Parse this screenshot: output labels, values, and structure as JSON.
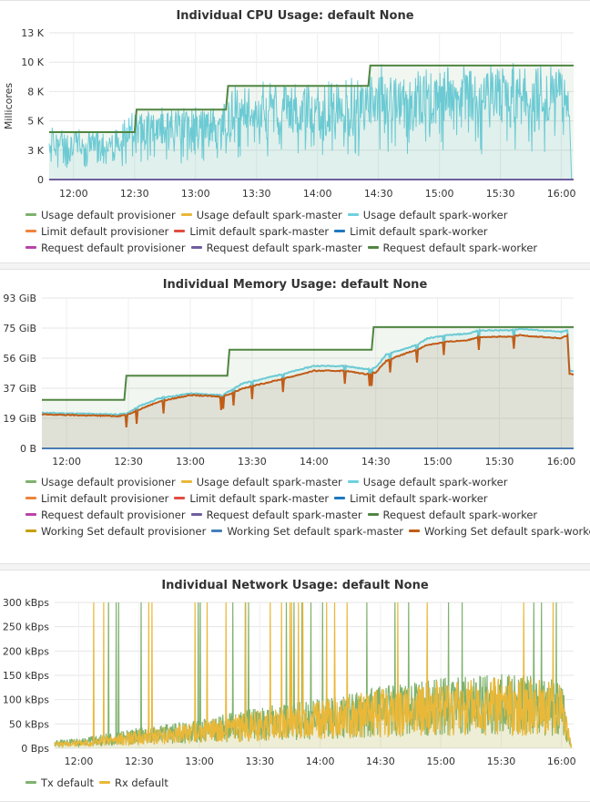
{
  "chart_data": [
    {
      "type": "line",
      "title": "Individual CPU Usage: default None",
      "ylabel": "Millicores",
      "ylim": [
        0,
        13000
      ],
      "yticks": [
        "0",
        "3 K",
        "5 K",
        "8 K",
        "10 K",
        "13 K"
      ],
      "ytick_values": [
        0,
        2600,
        5200,
        7800,
        10400,
        13000
      ],
      "xrange": [
        "11:48",
        "16:06"
      ],
      "xticks": [
        "12:00",
        "12:30",
        "13:00",
        "13:30",
        "14:00",
        "14:30",
        "15:00",
        "15:30",
        "16:00"
      ],
      "series": [
        {
          "name": "Usage default provisioner",
          "color": "#7eb26d",
          "points": []
        },
        {
          "name": "Usage default spark-master",
          "color": "#eab839",
          "points": []
        },
        {
          "name": "Usage default spark-worker",
          "color": "#6ed0e0",
          "points": [
            [
              "11:48",
              4000
            ],
            [
              "12:05",
              4100
            ],
            [
              "12:20",
              4200
            ],
            [
              "12:32",
              5600
            ],
            [
              "12:50",
              5700
            ],
            [
              "13:10",
              5600
            ],
            [
              "13:22",
              7800
            ],
            [
              "13:40",
              7600
            ],
            [
              "14:00",
              7500
            ],
            [
              "14:15",
              7700
            ],
            [
              "14:28",
              9000
            ],
            [
              "14:45",
              8600
            ],
            [
              "15:00",
              9000
            ],
            [
              "15:20",
              8800
            ],
            [
              "15:40",
              9200
            ],
            [
              "16:04",
              8800
            ],
            [
              "16:05",
              0
            ]
          ]
        },
        {
          "name": "Limit default provisioner",
          "color": "#ef843c",
          "points": []
        },
        {
          "name": "Limit default spark-master",
          "color": "#e24d42",
          "points": []
        },
        {
          "name": "Limit default spark-worker",
          "color": "#1f78c1",
          "points": []
        },
        {
          "name": "Request default provisioner",
          "color": "#ba43a9",
          "points": []
        },
        {
          "name": "Request default spark-master",
          "color": "#705da0",
          "points": [
            [
              "11:48",
              0
            ],
            [
              "16:06",
              0
            ]
          ]
        },
        {
          "name": "Request default spark-worker",
          "color": "#508642",
          "points": [
            [
              "11:48",
              4200
            ],
            [
              "12:30",
              4200
            ],
            [
              "12:31",
              6200
            ],
            [
              "13:15",
              6200
            ],
            [
              "13:16",
              8300
            ],
            [
              "14:25",
              8300
            ],
            [
              "14:26",
              10100
            ],
            [
              "16:06",
              10100
            ]
          ]
        }
      ]
    },
    {
      "type": "area",
      "title": "Individual Memory Usage: default None",
      "ylim": [
        0,
        93
      ],
      "yticks": [
        "0 B",
        "19 GiB",
        "37 GiB",
        "56 GiB",
        "75 GiB",
        "93 GiB"
      ],
      "ytick_values": [
        0,
        18.6,
        37.2,
        55.8,
        74.4,
        93
      ],
      "xrange": [
        "11:48",
        "16:06"
      ],
      "xticks": [
        "12:00",
        "12:30",
        "13:00",
        "13:30",
        "14:00",
        "14:30",
        "15:00",
        "15:30",
        "16:00"
      ],
      "series": [
        {
          "name": "Usage default provisioner",
          "color": "#7eb26d",
          "points": []
        },
        {
          "name": "Usage default spark-master",
          "color": "#eab839",
          "points": []
        },
        {
          "name": "Usage default spark-worker",
          "color": "#6ed0e0",
          "points": [
            [
              "11:48",
              22
            ],
            [
              "12:25",
              21
            ],
            [
              "12:30",
              22
            ],
            [
              "12:35",
              26
            ],
            [
              "12:45",
              31
            ],
            [
              "13:00",
              34
            ],
            [
              "13:15",
              33
            ],
            [
              "13:20",
              36
            ],
            [
              "13:25",
              40
            ],
            [
              "13:45",
              46
            ],
            [
              "14:00",
              51
            ],
            [
              "14:15",
              51
            ],
            [
              "14:25",
              49
            ],
            [
              "14:30",
              50
            ],
            [
              "14:35",
              58
            ],
            [
              "14:45",
              62
            ],
            [
              "14:50",
              64
            ],
            [
              "14:55",
              68
            ],
            [
              "15:05",
              70
            ],
            [
              "15:15",
              71
            ],
            [
              "15:20",
              73
            ],
            [
              "15:35",
              73
            ],
            [
              "15:40",
              74
            ],
            [
              "16:00",
              72
            ],
            [
              "16:03",
              73
            ],
            [
              "16:04",
              48
            ],
            [
              "16:06",
              48
            ]
          ]
        },
        {
          "name": "Limit default provisioner",
          "color": "#ef843c",
          "points": []
        },
        {
          "name": "Limit default spark-master",
          "color": "#e24d42",
          "points": []
        },
        {
          "name": "Limit default spark-worker",
          "color": "#1f78c1",
          "points": []
        },
        {
          "name": "Request default provisioner",
          "color": "#ba43a9",
          "points": []
        },
        {
          "name": "Request default spark-master",
          "color": "#705da0",
          "points": [
            [
              "11:48",
              0
            ],
            [
              "16:06",
              0
            ]
          ]
        },
        {
          "name": "Request default spark-worker",
          "color": "#508642",
          "points": [
            [
              "11:48",
              30
            ],
            [
              "12:28",
              30
            ],
            [
              "12:29",
              45
            ],
            [
              "13:18",
              45
            ],
            [
              "13:19",
              61
            ],
            [
              "14:28",
              61
            ],
            [
              "14:29",
              75
            ],
            [
              "16:06",
              75
            ]
          ]
        },
        {
          "name": "Working Set default provisioner",
          "color": "#c4a000",
          "points": []
        },
        {
          "name": "Working Set default spark-master",
          "color": "#447ebc",
          "points": [
            [
              "11:48",
              0
            ],
            [
              "16:06",
              0
            ]
          ]
        },
        {
          "name": "Working Set default spark-worker",
          "color": "#c15c17",
          "points": [
            [
              "11:48",
              21
            ],
            [
              "12:25",
              20
            ],
            [
              "12:30",
              21
            ],
            [
              "12:35",
              24
            ],
            [
              "12:45",
              29
            ],
            [
              "13:00",
              33
            ],
            [
              "13:15",
              32
            ],
            [
              "13:20",
              34
            ],
            [
              "13:25",
              37
            ],
            [
              "13:45",
              43
            ],
            [
              "14:00",
              48
            ],
            [
              "14:15",
              48
            ],
            [
              "14:25",
              46
            ],
            [
              "14:30",
              47
            ],
            [
              "14:35",
              54
            ],
            [
              "14:45",
              59
            ],
            [
              "14:50",
              61
            ],
            [
              "14:55",
              64
            ],
            [
              "15:05",
              66
            ],
            [
              "15:15",
              67
            ],
            [
              "15:20",
              69
            ],
            [
              "15:35",
              69
            ],
            [
              "15:40",
              70
            ],
            [
              "16:00",
              68
            ],
            [
              "16:03",
              70
            ],
            [
              "16:04",
              46
            ],
            [
              "16:06",
              46
            ]
          ]
        }
      ]
    },
    {
      "type": "line",
      "title": "Individual Network Usage: default None",
      "ylim": [
        0,
        300
      ],
      "yticks": [
        "0 Bps",
        "50 kBps",
        "100 kBps",
        "150 kBps",
        "200 kBps",
        "250 kBps",
        "300 kBps"
      ],
      "ytick_values": [
        0,
        50,
        100,
        150,
        200,
        250,
        300
      ],
      "xrange": [
        "11:48",
        "16:06"
      ],
      "xticks": [
        "12:00",
        "12:30",
        "13:00",
        "13:30",
        "14:00",
        "14:30",
        "15:00",
        "15:30",
        "16:00"
      ],
      "series": [
        {
          "name": "Tx default",
          "color": "#7eb26d",
          "points": [
            [
              "11:48",
              10
            ],
            [
              "12:00",
              12
            ],
            [
              "12:30",
              25
            ],
            [
              "13:00",
              35
            ],
            [
              "13:30",
              50
            ],
            [
              "14:00",
              60
            ],
            [
              "14:30",
              75
            ],
            [
              "15:00",
              85
            ],
            [
              "15:30",
              90
            ],
            [
              "16:00",
              85
            ],
            [
              "16:05",
              0
            ]
          ]
        },
        {
          "name": "Rx default",
          "color": "#eab839",
          "points": [
            [
              "11:48",
              8
            ],
            [
              "12:00",
              10
            ],
            [
              "12:30",
              22
            ],
            [
              "13:00",
              32
            ],
            [
              "13:30",
              47
            ],
            [
              "14:00",
              57
            ],
            [
              "14:30",
              72
            ],
            [
              "15:00",
              82
            ],
            [
              "15:30",
              88
            ],
            [
              "16:00",
              82
            ],
            [
              "16:05",
              0
            ]
          ]
        }
      ]
    }
  ]
}
